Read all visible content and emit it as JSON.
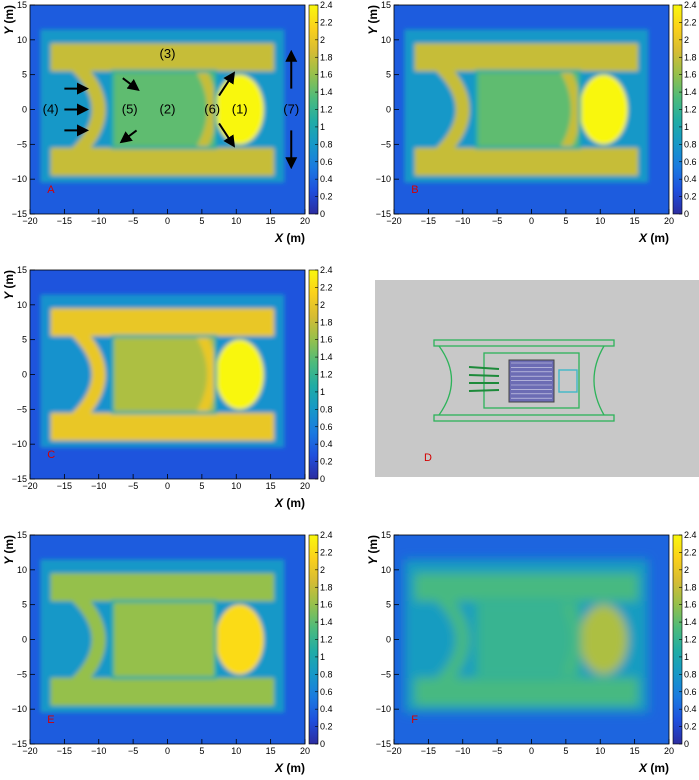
{
  "colors": {
    "cmap": [
      "#2c2da0",
      "#1f4fdd",
      "#1a7ae0",
      "#1798c8",
      "#20aca5",
      "#4dbb7c",
      "#95c04c",
      "#d6bc33",
      "#fbd11b",
      "#f9f70d"
    ],
    "background_D": "#c8c8c8",
    "model_wire": "#2db35a",
    "label_red": "#d40000"
  },
  "chart_data": [
    {
      "panel": "A",
      "type": "heatmap",
      "label": "A",
      "xlabel": "X",
      "ylabel": "Y",
      "unit": "(m)",
      "xlim": [
        -20,
        20
      ],
      "ylim": [
        -15,
        15
      ],
      "xticks": [
        "−20",
        "−15",
        "−10",
        "−5",
        "0",
        "5",
        "10",
        "15",
        "20"
      ],
      "yticks": [
        "−15",
        "−10",
        "−5",
        "0",
        "5",
        "10",
        "15"
      ],
      "colorbar": {
        "range": [
          0,
          2.4
        ],
        "ticks": [
          "0",
          "0.2",
          "0.4",
          "0.6",
          "0.8",
          "1",
          "1.2",
          "1.4",
          "1.6",
          "1.8",
          "2",
          "2.2",
          "2.4"
        ]
      },
      "intensity": {
        "background": 0.35,
        "frame": 1.8,
        "bright_zone": 2.4,
        "center": 1.4
      },
      "annotations": [
        "(1)",
        "(2)",
        "(3)",
        "(4)",
        "(5)",
        "(6)",
        "(7)"
      ]
    },
    {
      "panel": "B",
      "type": "heatmap",
      "label": "B",
      "xlabel": "X",
      "ylabel": "Y",
      "unit": "(m)",
      "xlim": [
        -20,
        20
      ],
      "ylim": [
        -15,
        15
      ],
      "xticks": [
        "−20",
        "−15",
        "−10",
        "−5",
        "0",
        "5",
        "10",
        "15",
        "20"
      ],
      "yticks": [
        "−15",
        "−10",
        "−5",
        "0",
        "5",
        "10",
        "15"
      ],
      "colorbar": {
        "range": [
          0,
          2.4
        ],
        "ticks": [
          "0",
          "0.2",
          "0.4",
          "0.6",
          "0.8",
          "1",
          "1.2",
          "1.4",
          "1.6",
          "1.8",
          "2",
          "2.2",
          "2.4"
        ]
      },
      "intensity": {
        "background": 0.35,
        "frame": 1.8,
        "bright_zone": 2.4,
        "center": 1.4
      }
    },
    {
      "panel": "C",
      "type": "heatmap",
      "label": "C",
      "xlabel": "X",
      "ylabel": "Y",
      "unit": "(m)",
      "xlim": [
        -20,
        20
      ],
      "ylim": [
        -15,
        15
      ],
      "xticks": [
        "−20",
        "−15",
        "−10",
        "−5",
        "0",
        "5",
        "10",
        "15",
        "20"
      ],
      "yticks": [
        "−15",
        "−10",
        "−5",
        "0",
        "5",
        "10",
        "15"
      ],
      "colorbar": {
        "range": [
          0,
          2.4
        ],
        "ticks": [
          "0",
          "0.2",
          "0.4",
          "0.6",
          "0.8",
          "1",
          "1.2",
          "1.4",
          "1.6",
          "1.8",
          "2",
          "2.2",
          "2.4"
        ]
      },
      "intensity": {
        "background": 0.3,
        "frame": 2.0,
        "bright_zone": 2.4,
        "center": 1.7
      }
    },
    {
      "panel": "D",
      "type": "model",
      "label": "D"
    },
    {
      "panel": "E",
      "type": "heatmap",
      "label": "E",
      "xlabel": "X",
      "ylabel": "Y",
      "unit": "(m)",
      "xlim": [
        -20,
        20
      ],
      "ylim": [
        -15,
        15
      ],
      "xticks": [
        "−20",
        "−15",
        "−10",
        "−5",
        "0",
        "5",
        "10",
        "15",
        "20"
      ],
      "yticks": [
        "−15",
        "−10",
        "−5",
        "0",
        "5",
        "10",
        "15"
      ],
      "colorbar": {
        "range": [
          0,
          2.4
        ],
        "ticks": [
          "0",
          "0.2",
          "0.4",
          "0.6",
          "0.8",
          "1",
          "1.2",
          "1.4",
          "1.6",
          "1.8",
          "2",
          "2.2",
          "2.4"
        ]
      },
      "intensity": {
        "background": 0.35,
        "frame": 1.6,
        "bright_zone": 2.2,
        "center": 1.6
      }
    },
    {
      "panel": "F",
      "type": "heatmap",
      "label": "F",
      "xlabel": "X",
      "ylabel": "Y",
      "unit": "(m)",
      "xlim": [
        -20,
        20
      ],
      "ylim": [
        -15,
        15
      ],
      "xticks": [
        "−20",
        "−15",
        "−10",
        "−5",
        "0",
        "5",
        "10",
        "15",
        "20"
      ],
      "yticks": [
        "−15",
        "−10",
        "−5",
        "0",
        "5",
        "10",
        "15"
      ],
      "colorbar": {
        "range": [
          0,
          2.4
        ],
        "ticks": [
          "0",
          "0.2",
          "0.4",
          "0.6",
          "0.8",
          "1",
          "1.2",
          "1.4",
          "1.6",
          "1.8",
          "2",
          "2.2",
          "2.4"
        ]
      },
      "intensity": {
        "background": 0.4,
        "frame": 1.3,
        "bright_zone": 1.7,
        "center": 1.2
      }
    }
  ]
}
